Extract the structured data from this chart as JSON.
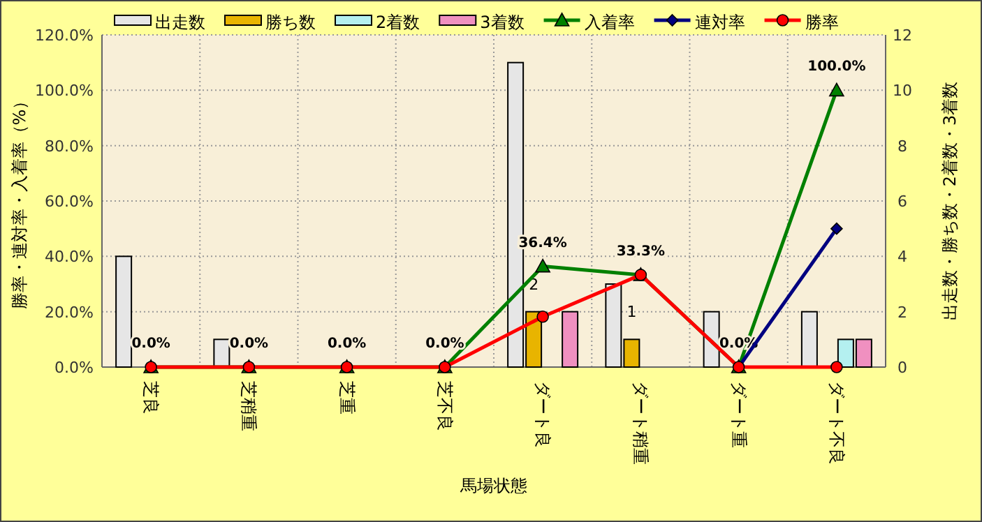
{
  "chart_data": {
    "type": "bar",
    "xlabel": "馬場状態",
    "ylabel": "勝率・連対率・入着率（%）",
    "y2label": "出走数・勝ち数・2着数・3着数",
    "categories": [
      "芝良",
      "芝稍重",
      "芝重",
      "芝不良",
      "ダート良",
      "ダート稍重",
      "ダート重",
      "ダート不良"
    ],
    "series": [
      {
        "name": "出走数",
        "axis": "y2",
        "color": "#e6e6e6",
        "values": [
          4,
          1,
          0,
          0,
          11,
          3,
          2,
          2
        ]
      },
      {
        "name": "勝ち数",
        "axis": "y2",
        "color": "#e8b400",
        "values": [
          0,
          0,
          0,
          0,
          2,
          1,
          0,
          0
        ],
        "value_labels": [
          null,
          null,
          null,
          null,
          "2",
          "1",
          null,
          null
        ]
      },
      {
        "name": "2着数",
        "axis": "y2",
        "color": "#b4f0f0",
        "values": [
          0,
          0,
          0,
          0,
          0,
          0,
          0,
          1
        ]
      },
      {
        "name": "3着数",
        "axis": "y2",
        "color": "#f090c0",
        "values": [
          0,
          0,
          0,
          0,
          2,
          0,
          0,
          1
        ]
      },
      {
        "name": "入着率",
        "type": "line",
        "marker": "triangle",
        "color": "#008000",
        "values": [
          0,
          0,
          0,
          0,
          36.4,
          33.3,
          0,
          100
        ],
        "value_labels": [
          "0.0%",
          "0.0%",
          "0.0%",
          "0.0%",
          "36.4%",
          "33.3%",
          "0.0%",
          "100.0%"
        ]
      },
      {
        "name": "連対率",
        "type": "line",
        "marker": "diamond",
        "color": "#000080",
        "values": [
          null,
          null,
          null,
          null,
          null,
          null,
          0,
          50
        ]
      },
      {
        "name": "勝率",
        "type": "line",
        "marker": "circle",
        "color": "#ff0000",
        "values": [
          0,
          0,
          0,
          0,
          18.2,
          33.3,
          0,
          0
        ]
      }
    ],
    "ylim": [
      0,
      120
    ],
    "yticks": [
      {
        "value": 0,
        "label": "0.0%"
      },
      {
        "value": 20,
        "label": "20.0%"
      },
      {
        "value": 40,
        "label": "40.0%"
      },
      {
        "value": 60,
        "label": "60.0%"
      },
      {
        "value": 80,
        "label": "80.0%"
      },
      {
        "value": 100,
        "label": "100.0%"
      },
      {
        "value": 120,
        "label": "120.0%"
      }
    ],
    "y2lim": [
      0,
      12
    ],
    "y2ticks": [
      0,
      2,
      4,
      6,
      8,
      10,
      12
    ],
    "grid": true,
    "legend": "top"
  }
}
